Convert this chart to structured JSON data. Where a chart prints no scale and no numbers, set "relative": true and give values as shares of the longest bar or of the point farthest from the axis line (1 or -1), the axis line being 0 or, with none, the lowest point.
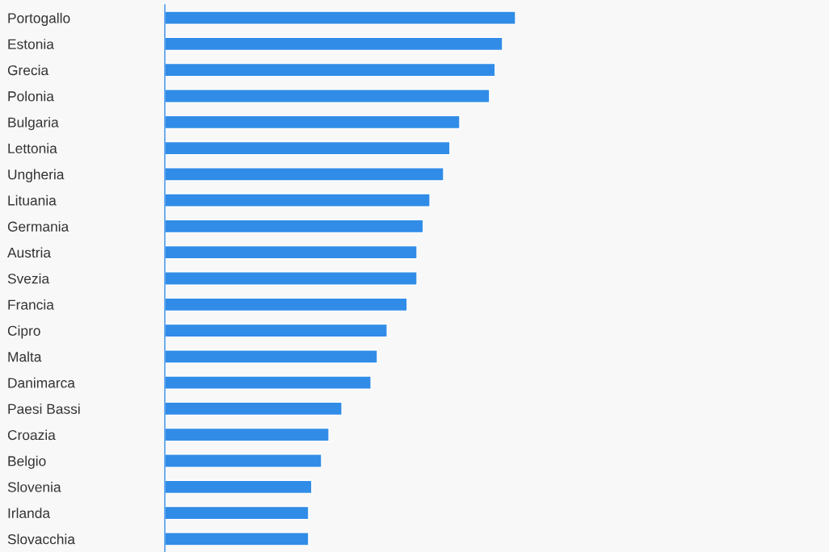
{
  "chart_data": {
    "type": "bar",
    "orientation": "horizontal",
    "relative": true,
    "color": "#318ce7",
    "grid": false,
    "legend": false,
    "categories": [
      "Portogallo",
      "Estonia",
      "Grecia",
      "Polonia",
      "Bulgaria",
      "Lettonia",
      "Ungheria",
      "Lituania",
      "Germania",
      "Austria",
      "Svezia",
      "Francia",
      "Cipro",
      "Malta",
      "Danimarca",
      "Paesi Bassi",
      "Croazia",
      "Belgio",
      "Slovenia",
      "Irlanda",
      "Slovacchia"
    ],
    "values": [
      1,
      0.963,
      0.942,
      0.926,
      0.841,
      0.813,
      0.795,
      0.756,
      0.737,
      0.719,
      0.719,
      0.691,
      0.634,
      0.606,
      0.588,
      0.505,
      0.468,
      0.447,
      0.419,
      0.41,
      0.41
    ]
  }
}
